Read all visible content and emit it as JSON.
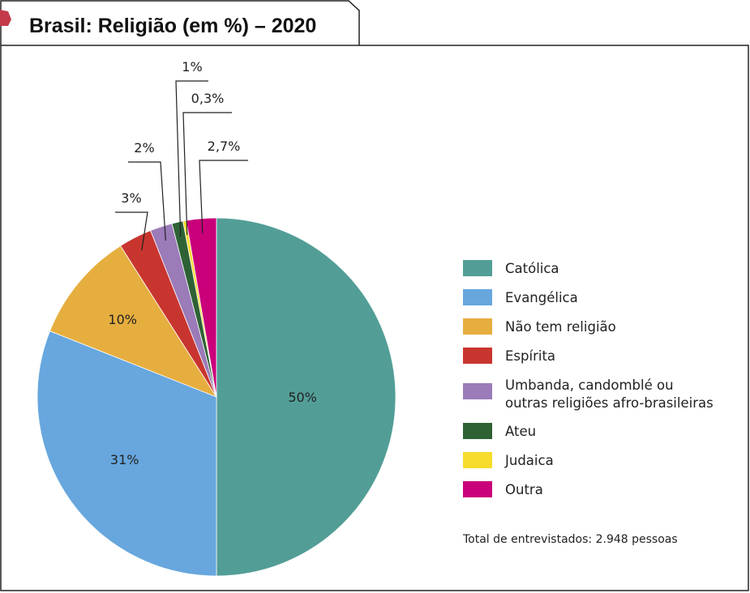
{
  "header": {
    "title": "Brasil: Religião (em %) – 2020"
  },
  "chart_data": {
    "type": "pie",
    "title": "Brasil: Religião (em %) – 2020",
    "slices": [
      {
        "name": "Católica",
        "value": 50,
        "label": "50%",
        "color": "#529e97"
      },
      {
        "name": "Evangélica",
        "value": 31,
        "label": "31%",
        "color": "#67a7de"
      },
      {
        "name": "Não tem religião",
        "value": 10,
        "label": "10%",
        "color": "#e6ae3f"
      },
      {
        "name": "Espírita",
        "value": 3,
        "label": "3%",
        "color": "#c8352f"
      },
      {
        "name": "Umbanda, candomblé ou outras religiões afro-brasileiras",
        "legend_lines": [
          "Umbanda, candomblé ou",
          "outras religiões afro-brasileiras"
        ],
        "value": 2,
        "label": "2%",
        "color": "#9b7bb8"
      },
      {
        "name": "Ateu",
        "value": 1,
        "label": "1%",
        "color": "#2e6235"
      },
      {
        "name": "Judaica",
        "value": 0.3,
        "label": "0,3%",
        "color": "#f7dc2e"
      },
      {
        "name": "Outra",
        "value": 2.7,
        "label": "2,7%",
        "color": "#c9007a"
      }
    ],
    "legend_position": "right"
  },
  "note": "Total de entrevistados: 2.948 pessoas",
  "colors": {
    "tab_accent": "#c23a4a",
    "frame": "#222222"
  }
}
